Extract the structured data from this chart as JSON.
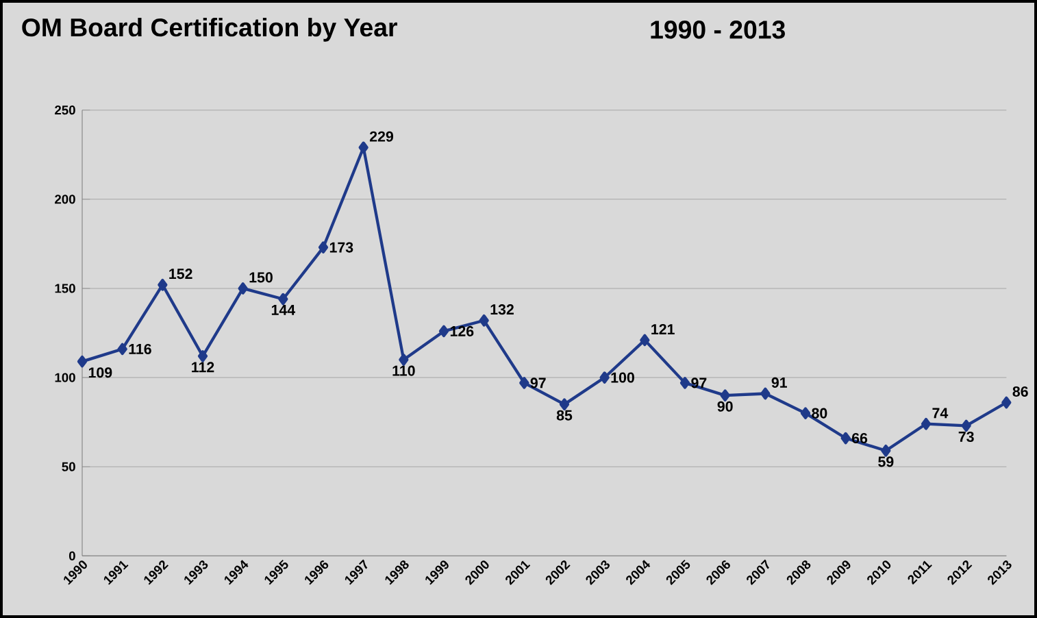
{
  "chart_data": {
    "type": "line",
    "title": "OM Board Certification by Year",
    "subtitle": "1990 - 2013",
    "categories": [
      "1990",
      "1991",
      "1992",
      "1993",
      "1994",
      "1995",
      "1996",
      "1997",
      "1998",
      "1999",
      "2000",
      "2001",
      "2002",
      "2003",
      "2004",
      "2005",
      "2006",
      "2007",
      "2008",
      "2009",
      "2010",
      "2011",
      "2012",
      "2013"
    ],
    "values": [
      109,
      116,
      152,
      112,
      150,
      144,
      173,
      229,
      110,
      126,
      132,
      97,
      85,
      100,
      121,
      97,
      90,
      91,
      80,
      66,
      59,
      74,
      73,
      86
    ],
    "color": "#1f3a8a",
    "ylim": [
      0,
      250
    ],
    "yticks": [
      0,
      50,
      100,
      150,
      200,
      250
    ],
    "grid": "y",
    "marker": "diamond",
    "line_style": "solid",
    "data_labels": true
  }
}
